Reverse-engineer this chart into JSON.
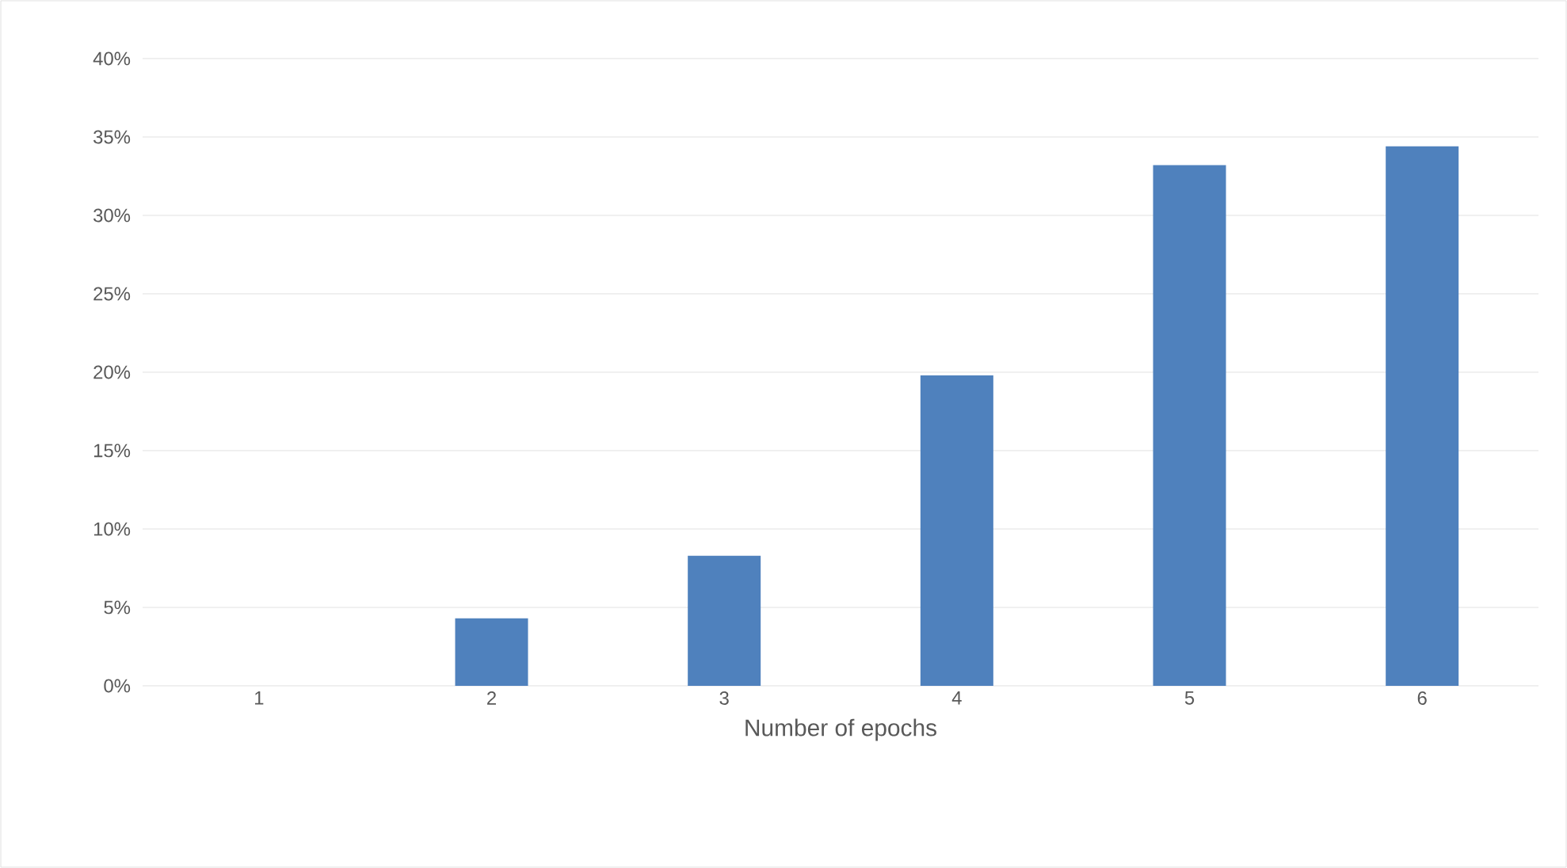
{
  "chart_data": {
    "type": "bar",
    "xlabel": "Number of epochs",
    "categories": [
      "1",
      "2",
      "3",
      "4",
      "5",
      "6"
    ],
    "values": [
      0,
      4.3,
      8.3,
      19.8,
      33.2,
      34.4
    ],
    "color": "#4f81bd",
    "ylim": [
      0,
      40
    ],
    "yticks": [
      {
        "value": 0,
        "label": "0%"
      },
      {
        "value": 5,
        "label": "5%"
      },
      {
        "value": 10,
        "label": "10%"
      },
      {
        "value": 15,
        "label": "15%"
      },
      {
        "value": 20,
        "label": "20%"
      },
      {
        "value": 25,
        "label": "25%"
      },
      {
        "value": 30,
        "label": "30%"
      },
      {
        "value": 35,
        "label": "35%"
      },
      {
        "value": 40,
        "label": "40%"
      }
    ],
    "grid": "y"
  }
}
